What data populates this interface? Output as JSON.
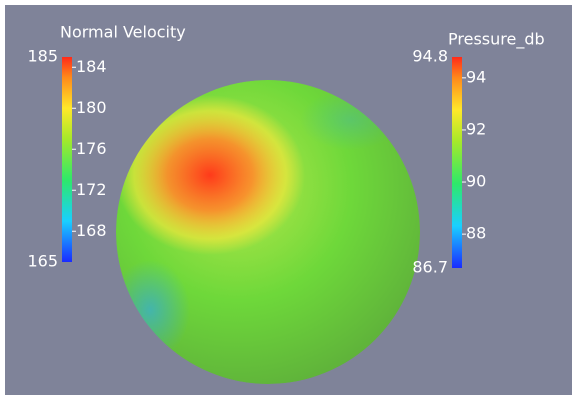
{
  "colorbars": [
    {
      "title": "Normal Velocity",
      "min": 165,
      "max": 185,
      "ticks": [
        184,
        180,
        176,
        172,
        168
      ]
    },
    {
      "title": "Pressure_db",
      "min": 86.7,
      "max": 94.8,
      "ticks": [
        94,
        92,
        90,
        88
      ]
    }
  ]
}
